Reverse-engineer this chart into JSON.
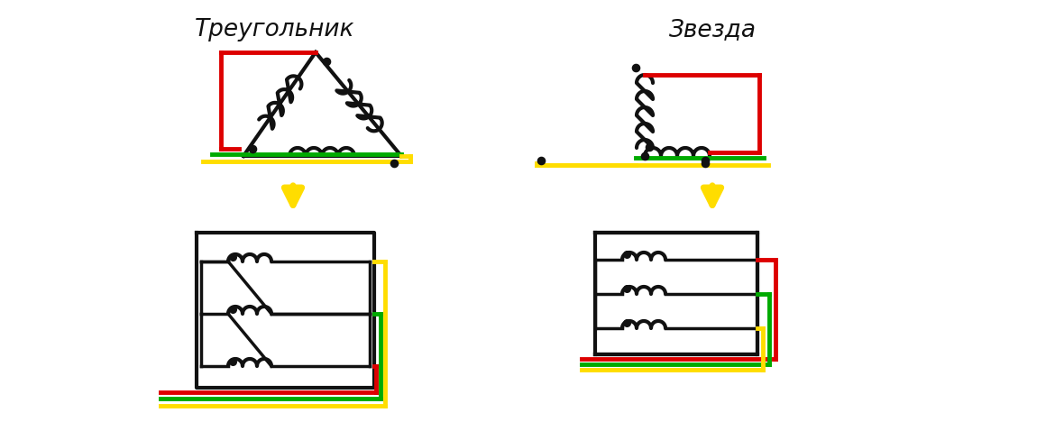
{
  "title_triangle": "Треугольник",
  "title_star": "Звезда",
  "bg_color": "#ffffff",
  "color_red": "#dd0000",
  "color_green": "#00aa00",
  "color_yellow": "#ffdd00",
  "color_black": "#111111",
  "lw": 2.5,
  "clw": 3.0
}
